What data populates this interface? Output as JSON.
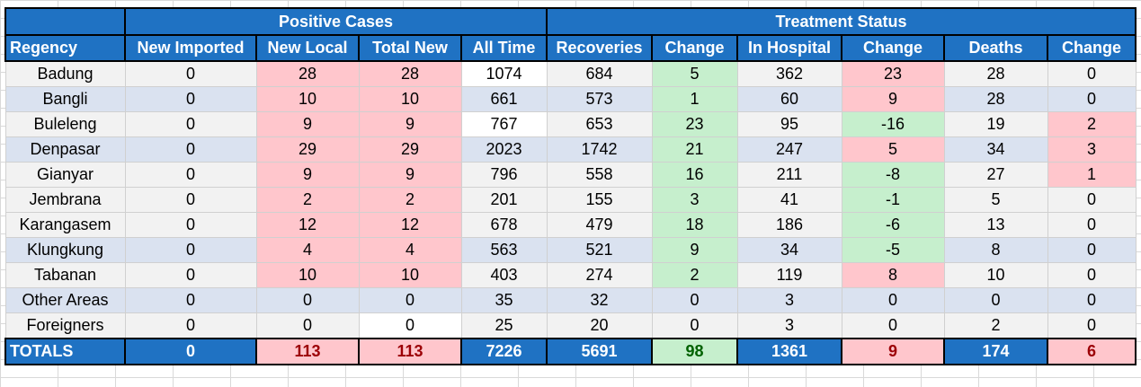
{
  "groups": {
    "positive_cases": "Positive Cases",
    "treatment_status": "Treatment Status"
  },
  "columns": [
    "Regency",
    "New Imported",
    "New Local",
    "Total New",
    "All Time",
    "Recoveries",
    "Change",
    "In Hospital",
    "Change",
    "Deaths",
    "Change"
  ],
  "rows": [
    {
      "regency": "Badung",
      "new_imported": "0",
      "new_local": "28",
      "total_new": "28",
      "all_time": "1074",
      "recoveries": "684",
      "rec_change": "5",
      "in_hospital": "362",
      "hosp_change": "23",
      "deaths": "28",
      "death_change": "0"
    },
    {
      "regency": "Bangli",
      "new_imported": "0",
      "new_local": "10",
      "total_new": "10",
      "all_time": "661",
      "recoveries": "573",
      "rec_change": "1",
      "in_hospital": "60",
      "hosp_change": "9",
      "deaths": "28",
      "death_change": "0"
    },
    {
      "regency": "Buleleng",
      "new_imported": "0",
      "new_local": "9",
      "total_new": "9",
      "all_time": "767",
      "recoveries": "653",
      "rec_change": "23",
      "in_hospital": "95",
      "hosp_change": "-16",
      "deaths": "19",
      "death_change": "2"
    },
    {
      "regency": "Denpasar",
      "new_imported": "0",
      "new_local": "29",
      "total_new": "29",
      "all_time": "2023",
      "recoveries": "1742",
      "rec_change": "21",
      "in_hospital": "247",
      "hosp_change": "5",
      "deaths": "34",
      "death_change": "3"
    },
    {
      "regency": "Gianyar",
      "new_imported": "0",
      "new_local": "9",
      "total_new": "9",
      "all_time": "796",
      "recoveries": "558",
      "rec_change": "16",
      "in_hospital": "211",
      "hosp_change": "-8",
      "deaths": "27",
      "death_change": "1"
    },
    {
      "regency": "Jembrana",
      "new_imported": "0",
      "new_local": "2",
      "total_new": "2",
      "all_time": "201",
      "recoveries": "155",
      "rec_change": "3",
      "in_hospital": "41",
      "hosp_change": "-1",
      "deaths": "5",
      "death_change": "0"
    },
    {
      "regency": "Karangasem",
      "new_imported": "0",
      "new_local": "12",
      "total_new": "12",
      "all_time": "678",
      "recoveries": "479",
      "rec_change": "18",
      "in_hospital": "186",
      "hosp_change": "-6",
      "deaths": "13",
      "death_change": "0"
    },
    {
      "regency": "Klungkung",
      "new_imported": "0",
      "new_local": "4",
      "total_new": "4",
      "all_time": "563",
      "recoveries": "521",
      "rec_change": "9",
      "in_hospital": "34",
      "hosp_change": "-5",
      "deaths": "8",
      "death_change": "0"
    },
    {
      "regency": "Tabanan",
      "new_imported": "0",
      "new_local": "10",
      "total_new": "10",
      "all_time": "403",
      "recoveries": "274",
      "rec_change": "2",
      "in_hospital": "119",
      "hosp_change": "8",
      "deaths": "10",
      "death_change": "0"
    },
    {
      "regency": "Other Areas",
      "new_imported": "0",
      "new_local": "0",
      "total_new": "0",
      "all_time": "35",
      "recoveries": "32",
      "rec_change": "0",
      "in_hospital": "3",
      "hosp_change": "0",
      "deaths": "0",
      "death_change": "0"
    },
    {
      "regency": "Foreigners",
      "new_imported": "0",
      "new_local": "0",
      "total_new": "0",
      "all_time": "25",
      "recoveries": "20",
      "rec_change": "0",
      "in_hospital": "3",
      "hosp_change": "0",
      "deaths": "2",
      "death_change": "0"
    }
  ],
  "totals": {
    "regency": "TOTALS",
    "new_imported": "0",
    "new_local": "113",
    "total_new": "113",
    "all_time": "7226",
    "recoveries": "5691",
    "rec_change": "98",
    "in_hospital": "1361",
    "hosp_change": "9",
    "deaths": "174",
    "death_change": "6"
  },
  "colors": {
    "header_blue": "#1f72c3",
    "increase_bg": "#ffc6cc",
    "increase_text": "#a8002b",
    "decrease_bg": "#c6efcd",
    "decrease_text": "#1f6b21"
  }
}
